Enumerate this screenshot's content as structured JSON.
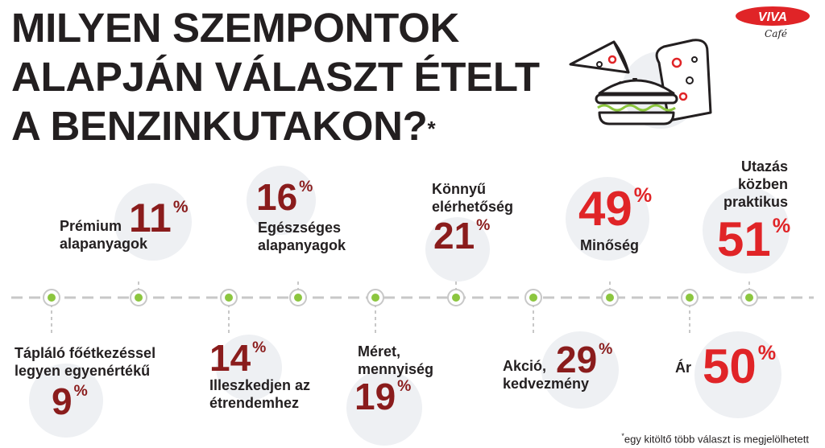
{
  "title": {
    "line1": "MILYEN SZEMPONTOK",
    "line2": "ALAPJÁN VÁLASZT ÉTELT",
    "line3": "A BENZINKUTAKON?",
    "mark": "*"
  },
  "logo": {
    "brand": "VIVA",
    "sub": "Café"
  },
  "items_top": [
    {
      "label1": "Prémium",
      "label2": "alapanyagok",
      "value": "11",
      "unit": "%"
    },
    {
      "label1": "Egészséges",
      "label2": "alapanyagok",
      "value": "16",
      "unit": "%"
    },
    {
      "label1": "Könnyű",
      "label2": "elérhetőség",
      "value": "21",
      "unit": "%"
    },
    {
      "label1": "Minőség",
      "value": "49",
      "unit": "%"
    },
    {
      "label1": "Utazás",
      "label2": "közben",
      "label3": "praktikus",
      "value": "51",
      "unit": "%"
    }
  ],
  "items_bottom": [
    {
      "label1": "Tápláló főétkezéssel",
      "label2": "legyen egyenértékű",
      "value": "9",
      "unit": "%"
    },
    {
      "label1": "Illeszkedjen az",
      "label2": "étrendemhez",
      "value": "14",
      "unit": "%"
    },
    {
      "label1": "Méret,",
      "label2": "mennyiség",
      "value": "19",
      "unit": "%"
    },
    {
      "label1": "Akció,",
      "label2": "kedvezmény",
      "value": "29",
      "unit": "%"
    },
    {
      "label1": "Ár",
      "value": "50",
      "unit": "%"
    }
  ],
  "footnote": {
    "mark": "*",
    "text": "egy kitöltő több választ is megjelölhetett"
  },
  "colors": {
    "dark_red": "#8a1c1c",
    "red": "#e02427",
    "green": "#8cc63f",
    "line": "#c8c8c8",
    "circle": "#eef0f3"
  }
}
